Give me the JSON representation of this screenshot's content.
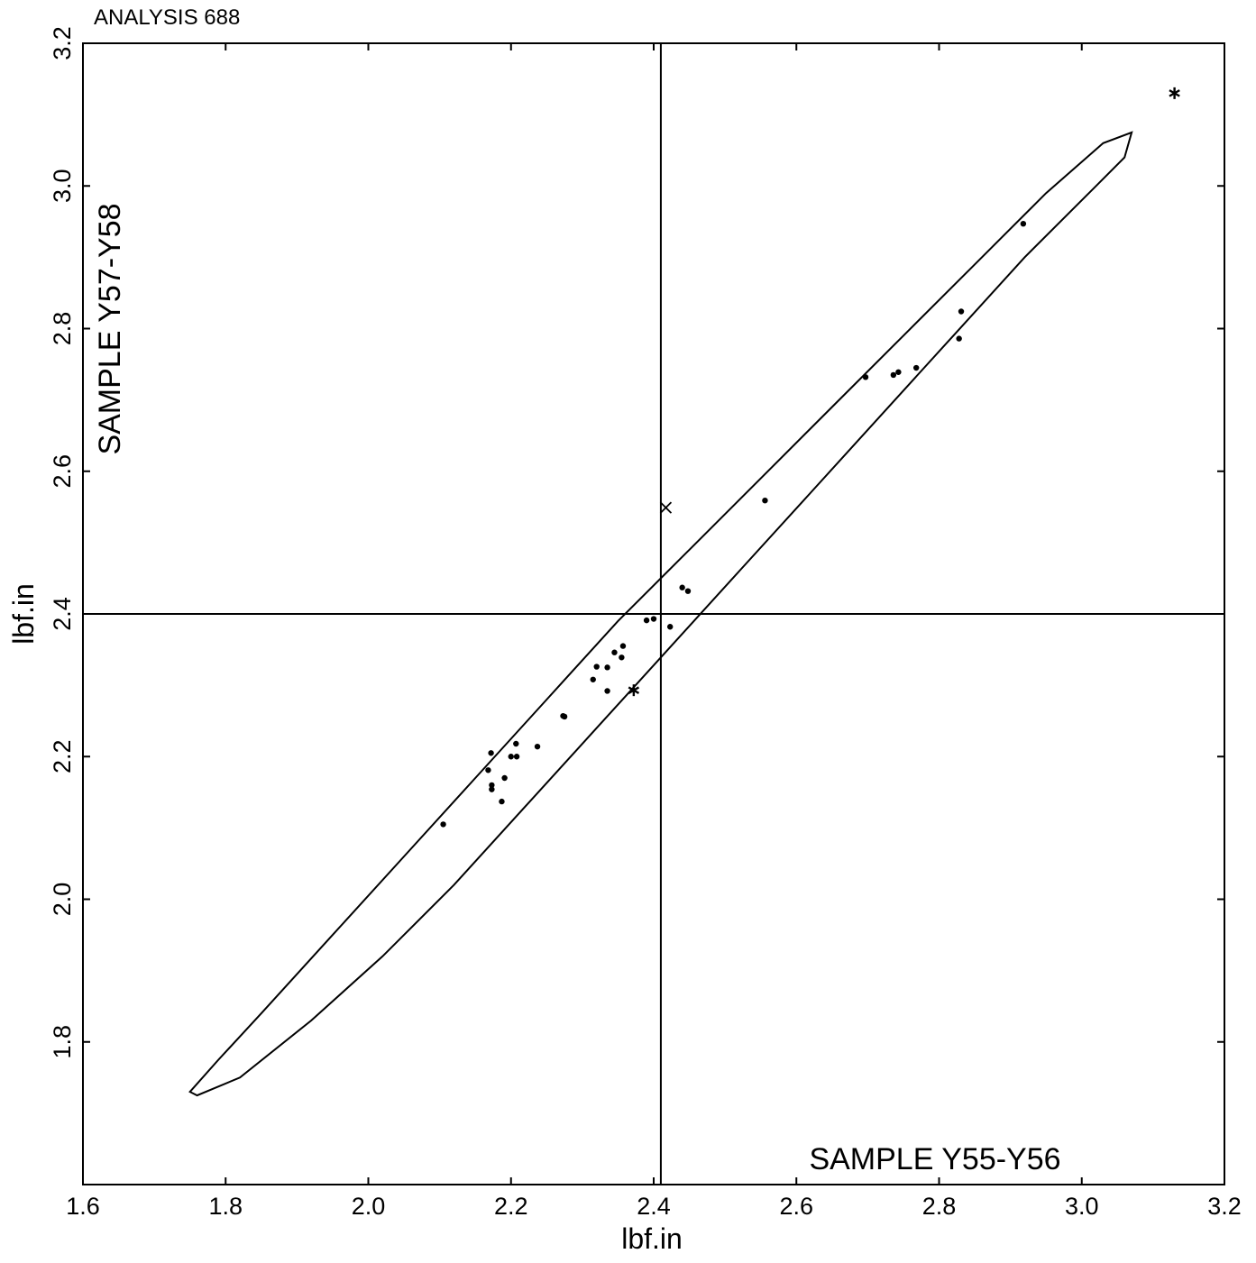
{
  "chart_data": {
    "type": "scatter",
    "title": "ANALYSIS 688",
    "xlabel": "lbf.in",
    "ylabel": "lbf.in",
    "x_sample_label": "SAMPLE Y55-Y56",
    "y_sample_label": "SAMPLE Y57-Y58",
    "xlim": [
      1.6,
      3.2
    ],
    "ylim": [
      1.6,
      3.2
    ],
    "xticks": [
      "1.6",
      "1.8",
      "2.0",
      "2.2",
      "2.4",
      "2.6",
      "2.8",
      "3.0",
      "3.2"
    ],
    "yticks": [
      "1.8",
      "2.0",
      "2.2",
      "2.4",
      "2.6",
      "2.8",
      "3.0",
      "3.2"
    ],
    "grid": false,
    "reference_lines": {
      "x": 2.41,
      "y": 2.4
    },
    "ellipse": {
      "points": [
        [
          1.75,
          1.73
        ],
        [
          1.79,
          1.775
        ],
        [
          1.85,
          1.84
        ],
        [
          1.95,
          1.95
        ],
        [
          2.05,
          2.06
        ],
        [
          2.15,
          2.17
        ],
        [
          2.25,
          2.28
        ],
        [
          2.35,
          2.39
        ],
        [
          2.45,
          2.49
        ],
        [
          2.55,
          2.59
        ],
        [
          2.65,
          2.69
        ],
        [
          2.75,
          2.79
        ],
        [
          2.85,
          2.89
        ],
        [
          2.95,
          2.99
        ],
        [
          3.03,
          3.06
        ],
        [
          3.07,
          3.075
        ],
        [
          3.06,
          3.04
        ],
        [
          3.02,
          3.0
        ],
        [
          2.92,
          2.9
        ],
        [
          2.82,
          2.79
        ],
        [
          2.72,
          2.68
        ],
        [
          2.62,
          2.57
        ],
        [
          2.52,
          2.46
        ],
        [
          2.42,
          2.35
        ],
        [
          2.32,
          2.24
        ],
        [
          2.22,
          2.13
        ],
        [
          2.12,
          2.02
        ],
        [
          2.02,
          1.92
        ],
        [
          1.92,
          1.83
        ],
        [
          1.82,
          1.75
        ],
        [
          1.76,
          1.725
        ]
      ]
    },
    "series": [
      {
        "marker": "dot",
        "points": [
          [
            2.105,
            2.105
          ],
          [
            2.168,
            2.181
          ],
          [
            2.172,
            2.205
          ],
          [
            2.173,
            2.16
          ],
          [
            2.173,
            2.154
          ],
          [
            2.187,
            2.137
          ],
          [
            2.191,
            2.17
          ],
          [
            2.2,
            2.2
          ],
          [
            2.207,
            2.218
          ],
          [
            2.208,
            2.2
          ],
          [
            2.237,
            2.214
          ],
          [
            2.273,
            2.257
          ],
          [
            2.275,
            2.256
          ],
          [
            2.315,
            2.308
          ],
          [
            2.32,
            2.326
          ],
          [
            2.335,
            2.325
          ],
          [
            2.335,
            2.292
          ],
          [
            2.345,
            2.346
          ],
          [
            2.355,
            2.339
          ],
          [
            2.357,
            2.355
          ],
          [
            2.39,
            2.391
          ],
          [
            2.4,
            2.393
          ],
          [
            2.423,
            2.382
          ],
          [
            2.44,
            2.437
          ],
          [
            2.448,
            2.432
          ],
          [
            2.556,
            2.559
          ],
          [
            2.697,
            2.732
          ],
          [
            2.736,
            2.735
          ],
          [
            2.743,
            2.739
          ],
          [
            2.768,
            2.745
          ],
          [
            2.828,
            2.786
          ],
          [
            2.831,
            2.824
          ],
          [
            2.918,
            2.947
          ]
        ]
      },
      {
        "marker": "asterisk",
        "points": [
          [
            2.372,
            2.293
          ],
          [
            3.13,
            3.13
          ]
        ]
      },
      {
        "marker": "cross",
        "points": [
          [
            2.417,
            2.549
          ]
        ]
      }
    ]
  }
}
